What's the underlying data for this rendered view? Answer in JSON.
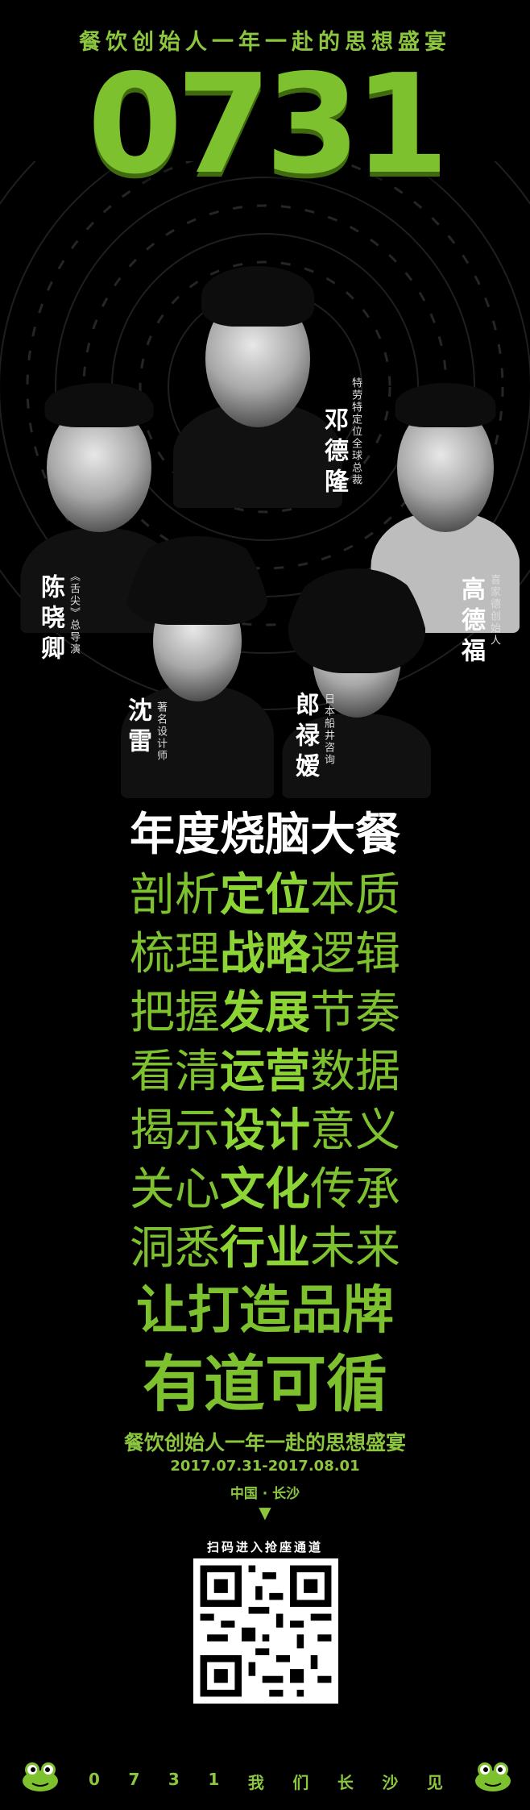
{
  "header": {
    "tagline": "餐饮创始人一年一赴的思想盛宴",
    "number": "0731"
  },
  "speakers": [
    {
      "name": "邓德隆",
      "title": "特劳特定位全球总裁"
    },
    {
      "name": "陈晓卿",
      "title": "《舌尖》总导演"
    },
    {
      "name": "高德福",
      "title": "喜家德创始人"
    },
    {
      "name": "沈雷",
      "title": "著名设计师"
    },
    {
      "name": "郎禄嫒",
      "title": "日本船井咨询"
    }
  ],
  "headline": {
    "line1": "年度烧脑大餐",
    "rows": [
      {
        "pre": "剖析",
        "key": "定位",
        "post": "本质"
      },
      {
        "pre": "梳理",
        "key": "战略",
        "post": "逻辑"
      },
      {
        "pre": "把握",
        "key": "发展",
        "post": "节奏"
      },
      {
        "pre": "看清",
        "key": "运营",
        "post": "数据"
      },
      {
        "pre": "揭示",
        "key": "设计",
        "post": "意义"
      },
      {
        "pre": "关心",
        "key": "文化",
        "post": "传承"
      },
      {
        "pre": "洞悉",
        "key": "行业",
        "post": "未来"
      }
    ],
    "slogan1": "让打造品牌",
    "slogan2": "有道可循"
  },
  "event": {
    "tagline": "餐饮创始人一年一赴的思想盛宴",
    "dates": "2017.07.31-2017.08.01",
    "location": "中国 · 长沙",
    "arrow": "▼"
  },
  "qr": {
    "caption": "扫码进入抢座通道"
  },
  "footer": {
    "chars": [
      "0",
      "7",
      "3",
      "1",
      "我",
      "们",
      "长",
      "沙",
      "见"
    ]
  },
  "colors": {
    "accent": "#7dc12f",
    "background": "#000000"
  }
}
